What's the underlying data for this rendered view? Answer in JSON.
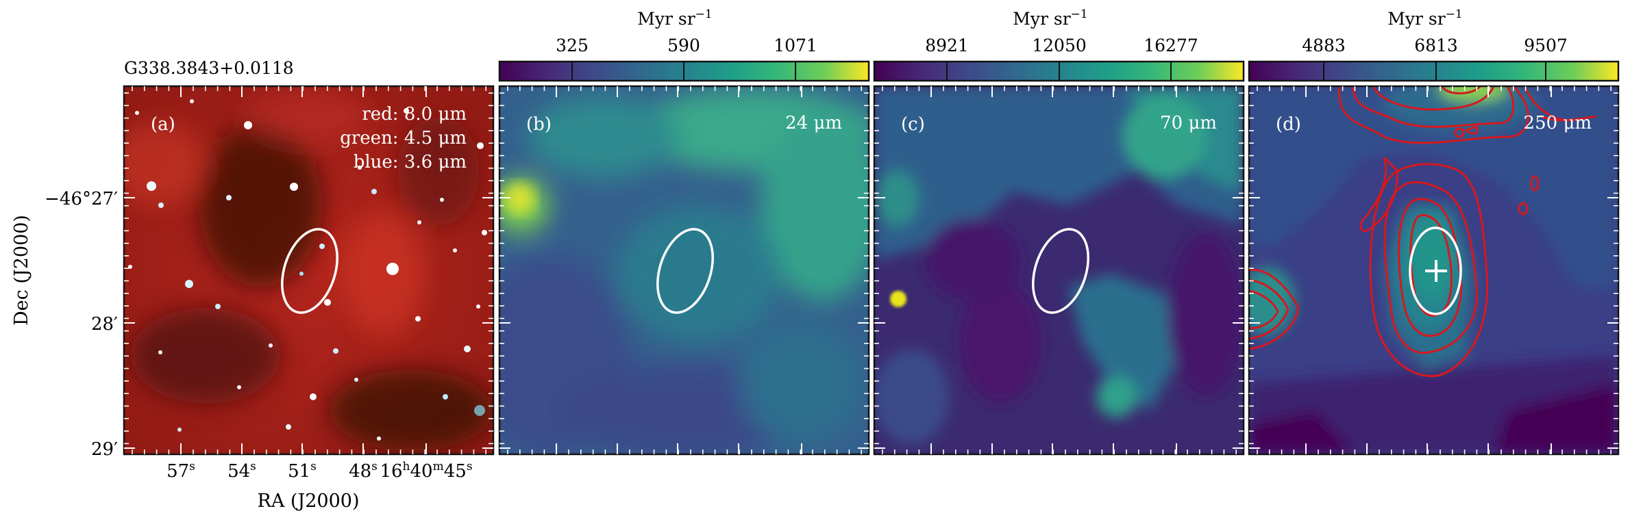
{
  "source_title": "G338.3843+0.0118",
  "axes": {
    "xlabel": "RA (J2000)",
    "ylabel": "Dec (J2000)",
    "ra_ticks": [
      {
        "h": "",
        "m": "",
        "s": "57",
        "sup": "s"
      },
      {
        "h": "",
        "m": "",
        "s": "54",
        "sup": "s"
      },
      {
        "h": "",
        "m": "",
        "s": "51",
        "sup": "s"
      },
      {
        "h": "",
        "m": "",
        "s": "48",
        "sup": "s"
      },
      {
        "h": "16",
        "m": "40",
        "s": "45",
        "sup": "s"
      }
    ],
    "dec_ticks": [
      {
        "deg": "−46°",
        "min": "27′"
      },
      {
        "deg": "",
        "min": "28′"
      },
      {
        "deg": "",
        "min": "29′"
      }
    ]
  },
  "panels": [
    {
      "tag": "(a)",
      "label_lines": [
        "red: 8.0 μm",
        "green: 4.5 μm",
        "blue: 3.6 μm"
      ],
      "image_kind": "rgb",
      "base_color": "#a51f18"
    },
    {
      "tag": "(b)",
      "label": "24 μm",
      "colorbar": {
        "unit": "Myr sr−1",
        "unit_main": "Myr sr",
        "unit_exp": "−1",
        "ticks": [
          "325",
          "590",
          "1071"
        ]
      }
    },
    {
      "tag": "(c)",
      "label": "70 μm",
      "colorbar": {
        "unit_main": "Myr sr",
        "unit_exp": "−1",
        "ticks": [
          "8921",
          "12050",
          "16277"
        ]
      }
    },
    {
      "tag": "(d)",
      "label": "250 μm",
      "colorbar": {
        "unit_main": "Myr sr",
        "unit_exp": "−1",
        "ticks": [
          "4883",
          "6813",
          "9507"
        ]
      },
      "contour_color": "#d6181e",
      "marker": "cross"
    }
  ],
  "colors": {
    "ellipse": "#ffffff",
    "colormap": "viridis",
    "contour": "#d6181e"
  }
}
